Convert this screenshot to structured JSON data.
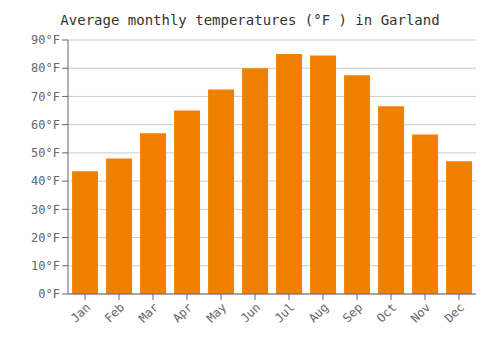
{
  "chart_data": {
    "type": "bar",
    "title": "Average monthly temperatures (°F ) in Garland",
    "categories": [
      "Jan",
      "Feb",
      "Mar",
      "Apr",
      "May",
      "Jun",
      "Jul",
      "Aug",
      "Sep",
      "Oct",
      "Nov",
      "Dec"
    ],
    "values": [
      43.5,
      48.0,
      57.0,
      65.0,
      72.5,
      80.0,
      85.0,
      84.5,
      77.5,
      66.5,
      56.5,
      47.0
    ],
    "color": "#F08000",
    "ylim": [
      0,
      90
    ],
    "yticks": [
      {
        "value": 0,
        "label": "0°F"
      },
      {
        "value": 10,
        "label": "10°F"
      },
      {
        "value": 20,
        "label": "20°F"
      },
      {
        "value": 30,
        "label": "30°F"
      },
      {
        "value": 40,
        "label": "40°F"
      },
      {
        "value": 50,
        "label": "50°F"
      },
      {
        "value": 60,
        "label": "60°F"
      },
      {
        "value": 70,
        "label": "70°F"
      },
      {
        "value": 80,
        "label": "80°F"
      },
      {
        "value": 90,
        "label": "90°F"
      }
    ],
    "grid": true
  }
}
